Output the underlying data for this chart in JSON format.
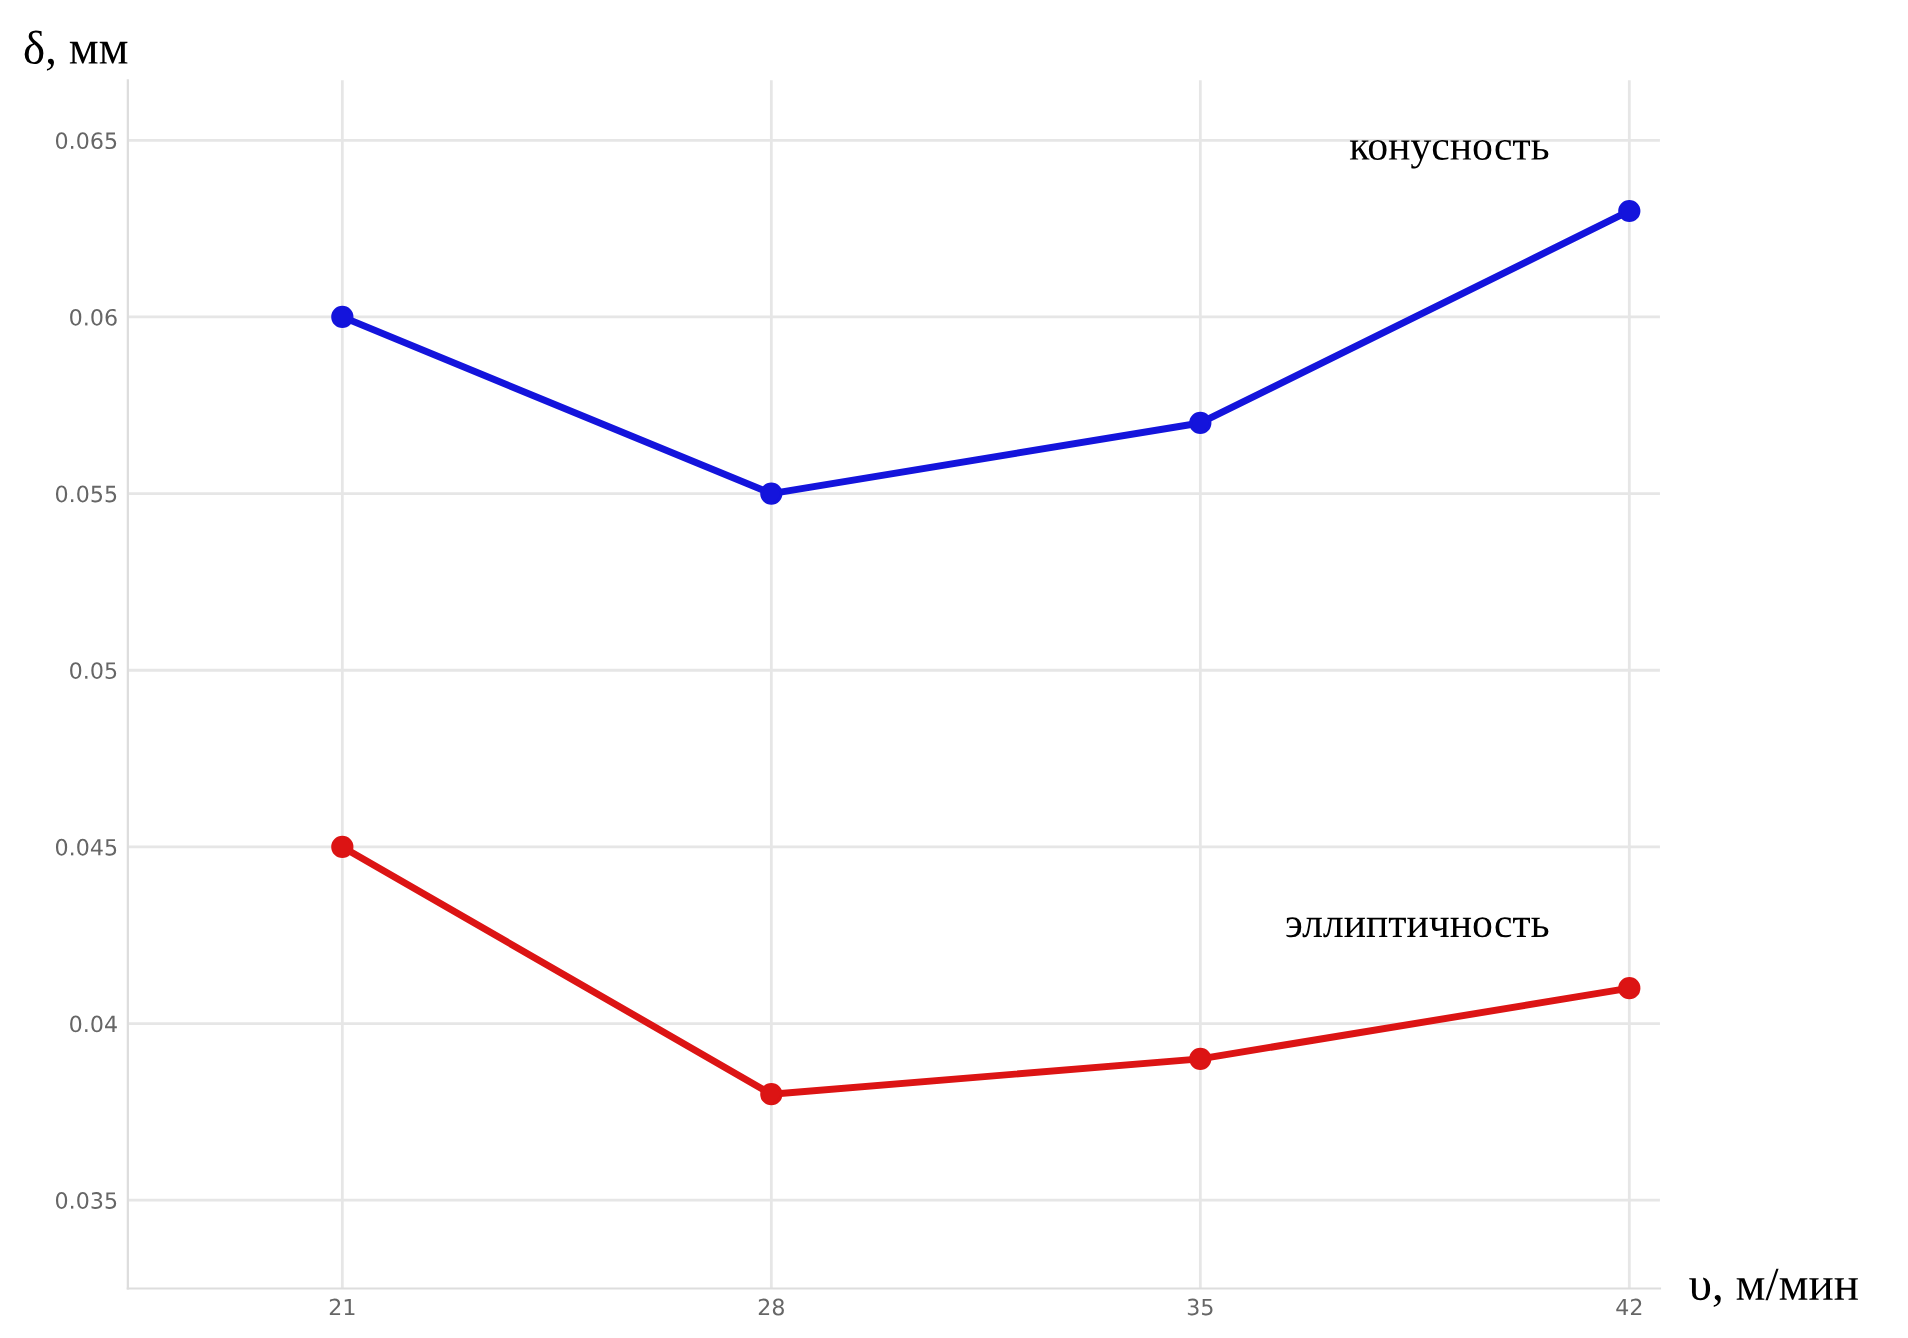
{
  "chart_data": {
    "type": "line",
    "xlabel": "υ, м/мин",
    "ylabel": "δ, мм",
    "x": [
      21,
      28,
      35,
      42
    ],
    "series": [
      {
        "name": "конусность",
        "color": "#1414dc",
        "values": [
          0.06,
          0.055,
          0.057,
          0.063
        ]
      },
      {
        "name": "эллиптичность",
        "color": "#dc1414",
        "values": [
          0.045,
          0.038,
          0.039,
          0.041
        ]
      }
    ],
    "xlim": [
      17.5,
      42.5
    ],
    "xticks": [
      21,
      28,
      35,
      42
    ],
    "ylim": [
      0.0325,
      0.0667
    ],
    "yticks": [
      0.035,
      0.04,
      0.045,
      0.05,
      0.055,
      0.06,
      0.065
    ],
    "grid": true,
    "marker": "circle",
    "line_style": "solid",
    "legend": false
  }
}
